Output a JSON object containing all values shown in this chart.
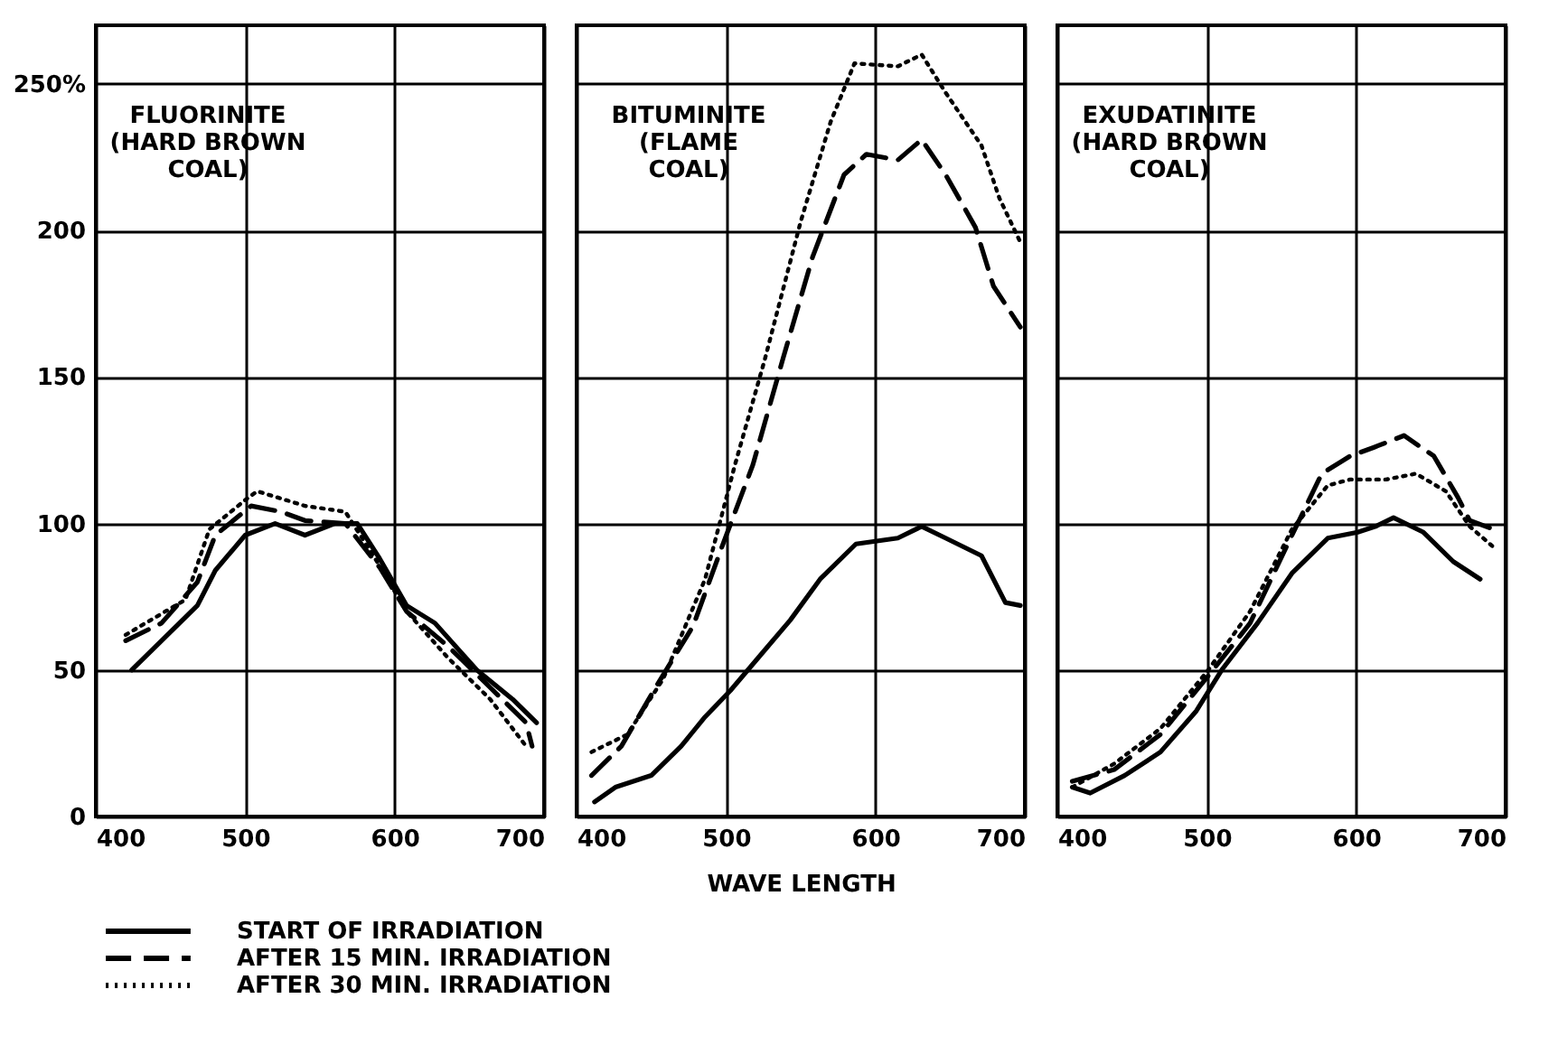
{
  "chart_data": [
    {
      "type": "line",
      "title": "FLUORINITE\n(HARD BROWN\nCOAL)",
      "xlim": [
        400,
        700
      ],
      "xticks": [
        400,
        500,
        600,
        700
      ],
      "ylim": [
        0,
        270
      ],
      "yticks": [
        0,
        50,
        100,
        150,
        200,
        {
          "value": 250,
          "label": "250%"
        }
      ],
      "grid": true,
      "legend": "bottom",
      "marker": "none",
      "series": [
        {
          "name": "START OF IRRADIATION",
          "color": "#000000",
          "line_style": "solid",
          "x": [
            424,
            444,
            468,
            480,
            500,
            520,
            540,
            560,
            575,
            590,
            608,
            627,
            655,
            679,
            695
          ],
          "values": [
            50,
            60,
            72,
            84,
            96,
            100,
            96,
            100,
            100,
            88,
            72,
            66,
            50,
            40,
            32
          ]
        },
        {
          "name": "AFTER 15 MIN. IRRADIATION",
          "color": "#000000",
          "line_style": "dashed",
          "x": [
            420,
            444,
            468,
            480,
            504,
            524,
            540,
            567,
            590,
            608,
            636,
            664,
            688,
            692
          ],
          "values": [
            60,
            66,
            80,
            96,
            106,
            104,
            101,
            100,
            85,
            70,
            58,
            44,
            32,
            24
          ]
        },
        {
          "name": "AFTER 30 MIN. IRRADIATION",
          "color": "#000000",
          "line_style": "dotted",
          "x": [
            420,
            460,
            476,
            500,
            508,
            540,
            567,
            587,
            608,
            636,
            664,
            688
          ],
          "values": [
            62,
            74,
            98,
            108,
            111,
            106,
            104,
            88,
            70,
            54,
            40,
            24
          ]
        }
      ]
    },
    {
      "type": "line",
      "title": "BITUMINITE\n(FLAME\nCOAL)",
      "xlabel": "WAVE LENGTH",
      "xlim": [
        400,
        700
      ],
      "xticks": [
        400,
        500,
        600,
        700
      ],
      "ylim": [
        0,
        270
      ],
      "yticks": [
        0,
        50,
        100,
        150,
        200,
        250
      ],
      "grid": true,
      "tick_labels": "x",
      "marker": "none",
      "series": [
        {
          "color": "#000000",
          "line_style": "solid",
          "x": [
            412,
            426,
            450,
            470,
            486,
            503,
            523,
            543,
            563,
            587,
            615,
            631,
            647,
            671,
            687,
            697
          ],
          "values": [
            5,
            10,
            14,
            24,
            34,
            43,
            55,
            67,
            81,
            93,
            95,
            99,
            95,
            89,
            73,
            72
          ]
        },
        {
          "color": "#000000",
          "line_style": "dashed",
          "x": [
            410,
            430,
            454,
            478,
            498,
            518,
            538,
            558,
            579,
            594,
            615,
            631,
            647,
            667,
            679,
            697
          ],
          "values": [
            14,
            24,
            45,
            65,
            93,
            120,
            156,
            191,
            219,
            226,
            224,
            231,
            219,
            201,
            181,
            167
          ]
        },
        {
          "color": "#000000",
          "line_style": "dotted",
          "x": [
            410,
            434,
            458,
            486,
            506,
            526,
            550,
            570,
            586,
            615,
            631,
            647,
            671,
            683,
            697
          ],
          "values": [
            22,
            28,
            47,
            81,
            120,
            156,
            203,
            237,
            257,
            256,
            260,
            247,
            229,
            211,
            196
          ]
        }
      ]
    },
    {
      "type": "line",
      "title": "EXUDATINITE\n(HARD BROWN\nCOAL)",
      "xlim": [
        400,
        700
      ],
      "xticks": [
        400,
        500,
        600,
        700
      ],
      "ylim": [
        0,
        270
      ],
      "yticks": [
        0,
        50,
        100,
        150,
        200,
        250
      ],
      "grid": true,
      "tick_labels": "x",
      "marker": "none",
      "series": [
        {
          "color": "#000000",
          "line_style": "solid",
          "x": [
            410,
            422,
            445,
            469,
            493,
            510,
            534,
            557,
            581,
            601,
            613,
            625,
            645,
            665,
            683
          ],
          "values": [
            10,
            8,
            14,
            22,
            36,
            50,
            66,
            83,
            95,
            97,
            99,
            102,
            97,
            87,
            81
          ]
        },
        {
          "color": "#000000",
          "line_style": "dashed",
          "x": [
            410,
            438,
            469,
            501,
            529,
            557,
            577,
            596,
            612,
            632,
            652,
            668,
            676,
            692
          ],
          "values": [
            12,
            16,
            28,
            48,
            66,
            96,
            117,
            123,
            126,
            130,
            123,
            109,
            101,
            98
          ]
        },
        {
          "color": "#000000",
          "line_style": "dotted",
          "x": [
            410,
            438,
            469,
            501,
            529,
            557,
            581,
            596,
            620,
            640,
            660,
            676,
            694
          ],
          "values": [
            10,
            18,
            30,
            50,
            70,
            98,
            113,
            115,
            115,
            117,
            111,
            99,
            91
          ]
        }
      ]
    }
  ]
}
